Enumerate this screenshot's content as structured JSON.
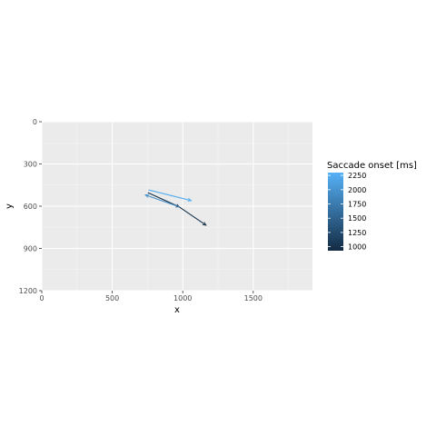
{
  "chart_data": {
    "type": "line",
    "xlabel": "x",
    "ylabel": "y",
    "xlim": [
      0,
      1920
    ],
    "ylim": [
      1200,
      0
    ],
    "y_reversed": true,
    "x_ticks": [
      0,
      500,
      1000,
      1500
    ],
    "x_tick_labels": [
      "0",
      "500",
      "1000",
      "1500"
    ],
    "y_ticks": [
      0,
      300,
      600,
      900,
      1200
    ],
    "y_tick_labels": [
      "0",
      "300",
      "600",
      "900",
      "1200"
    ],
    "grid": true,
    "panel_background": "#ebebeb",
    "legend": {
      "title": "Saccade onset [ms]",
      "position": "right",
      "scale": "continuous",
      "range": [
        930,
        2300
      ],
      "color_low": "#132b43",
      "color_high": "#56b1f7",
      "breaks": [
        2250,
        2000,
        1750,
        1500,
        1250,
        1000
      ],
      "break_labels": [
        "2250",
        "2000",
        "1750",
        "1500",
        "1250",
        "1000"
      ]
    },
    "segments": [
      {
        "onset": 950,
        "x_start": 755,
        "y_start": 505,
        "x_end": 975,
        "y_end": 605
      },
      {
        "onset": 1000,
        "x_start": 975,
        "y_start": 605,
        "x_end": 1165,
        "y_end": 735
      },
      {
        "onset": 1950,
        "x_start": 975,
        "y_start": 605,
        "x_end": 735,
        "y_end": 520
      },
      {
        "onset": 2250,
        "x_start": 760,
        "y_start": 485,
        "x_end": 1060,
        "y_end": 560
      }
    ]
  }
}
